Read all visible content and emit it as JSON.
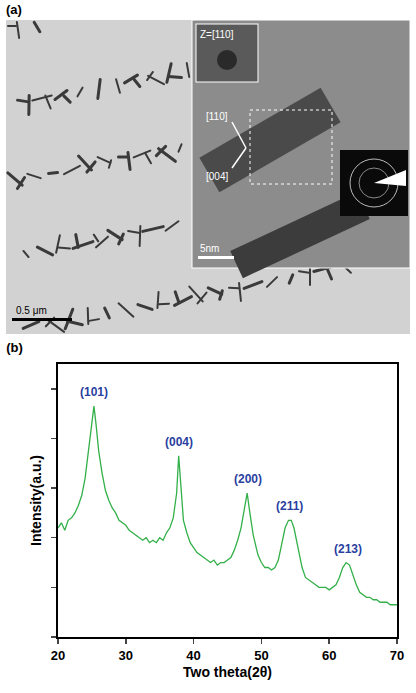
{
  "image_panel": {
    "label": "(a)",
    "scale_bar": "0.5 μm",
    "inset": {
      "zone_axis": "Z=[110]",
      "directions": [
        "[110]",
        "[004]"
      ],
      "scale_bar": "5nm"
    }
  },
  "chart_data": {
    "type": "line",
    "title": "(b)",
    "x_label": "Two theta(2θ)",
    "y_label": "Intensity(a.u.)",
    "x": [
      20,
      20.5,
      21,
      21.5,
      22,
      22.5,
      23,
      23.5,
      24,
      24.5,
      25,
      25.3,
      25.6,
      26,
      26.5,
      27,
      27.5,
      28,
      28.5,
      29,
      29.5,
      30,
      30.5,
      31,
      31.5,
      32,
      32.5,
      33,
      33.5,
      34,
      34.5,
      35,
      35.5,
      36,
      36.5,
      37,
      37.5,
      37.8,
      38.1,
      38.5,
      39,
      39.5,
      40,
      40.5,
      41,
      41.5,
      42,
      42.5,
      43,
      43.5,
      44,
      44.5,
      45,
      45.5,
      46,
      46.5,
      47,
      47.5,
      47.9,
      48.3,
      48.8,
      49.5,
      50,
      50.5,
      51,
      51.5,
      52,
      52.5,
      53,
      53.5,
      54,
      54.4,
      54.8,
      55.3,
      56,
      56.5,
      57,
      57.5,
      58,
      58.5,
      59,
      59.5,
      60,
      60.5,
      61,
      61.5,
      62,
      62.5,
      63,
      63.5,
      64,
      64.5,
      65,
      65.5,
      66,
      66.5,
      67,
      67.5,
      68,
      68.5,
      69,
      69.5,
      70
    ],
    "values": [
      44,
      46,
      43,
      47,
      48,
      50,
      53,
      57,
      64,
      76,
      87,
      93,
      86,
      75,
      66,
      59,
      55,
      52,
      50,
      47,
      46,
      45,
      43,
      42,
      41,
      40,
      39,
      40,
      38,
      39,
      38,
      40,
      39,
      42,
      44,
      48,
      58,
      73,
      60,
      47,
      42,
      38,
      36,
      34,
      33,
      32,
      31,
      30,
      31,
      29,
      30,
      30,
      31,
      32,
      35,
      39,
      44,
      51,
      58,
      50,
      41,
      33,
      30,
      28,
      28,
      27,
      28,
      31,
      37,
      44,
      47,
      47,
      44,
      37,
      28,
      24,
      23,
      22,
      21,
      20,
      20,
      20,
      19,
      20,
      21,
      24,
      28,
      30,
      29,
      25,
      21,
      18,
      17,
      16,
      16,
      15,
      15,
      14,
      14,
      14,
      13,
      13,
      13
    ],
    "color": "#33b04a",
    "annotations": [
      {
        "text": "(101)",
        "x": 25.3,
        "y": 95
      },
      {
        "text": "(004)",
        "x": 37.9,
        "y": 75
      },
      {
        "text": "(200)",
        "x": 48,
        "y": 60
      },
      {
        "text": "(211)",
        "x": 54.2,
        "y": 49
      },
      {
        "text": "(213)",
        "x": 62.7,
        "y": 32
      }
    ],
    "xlim": [
      20,
      70
    ],
    "xticks": [
      20,
      30,
      40,
      50,
      60,
      70
    ],
    "ylim": [
      0,
      110
    ],
    "yticks": [
      0,
      20,
      40,
      60,
      80,
      100
    ],
    "tick_labels": "x",
    "grid": false
  }
}
